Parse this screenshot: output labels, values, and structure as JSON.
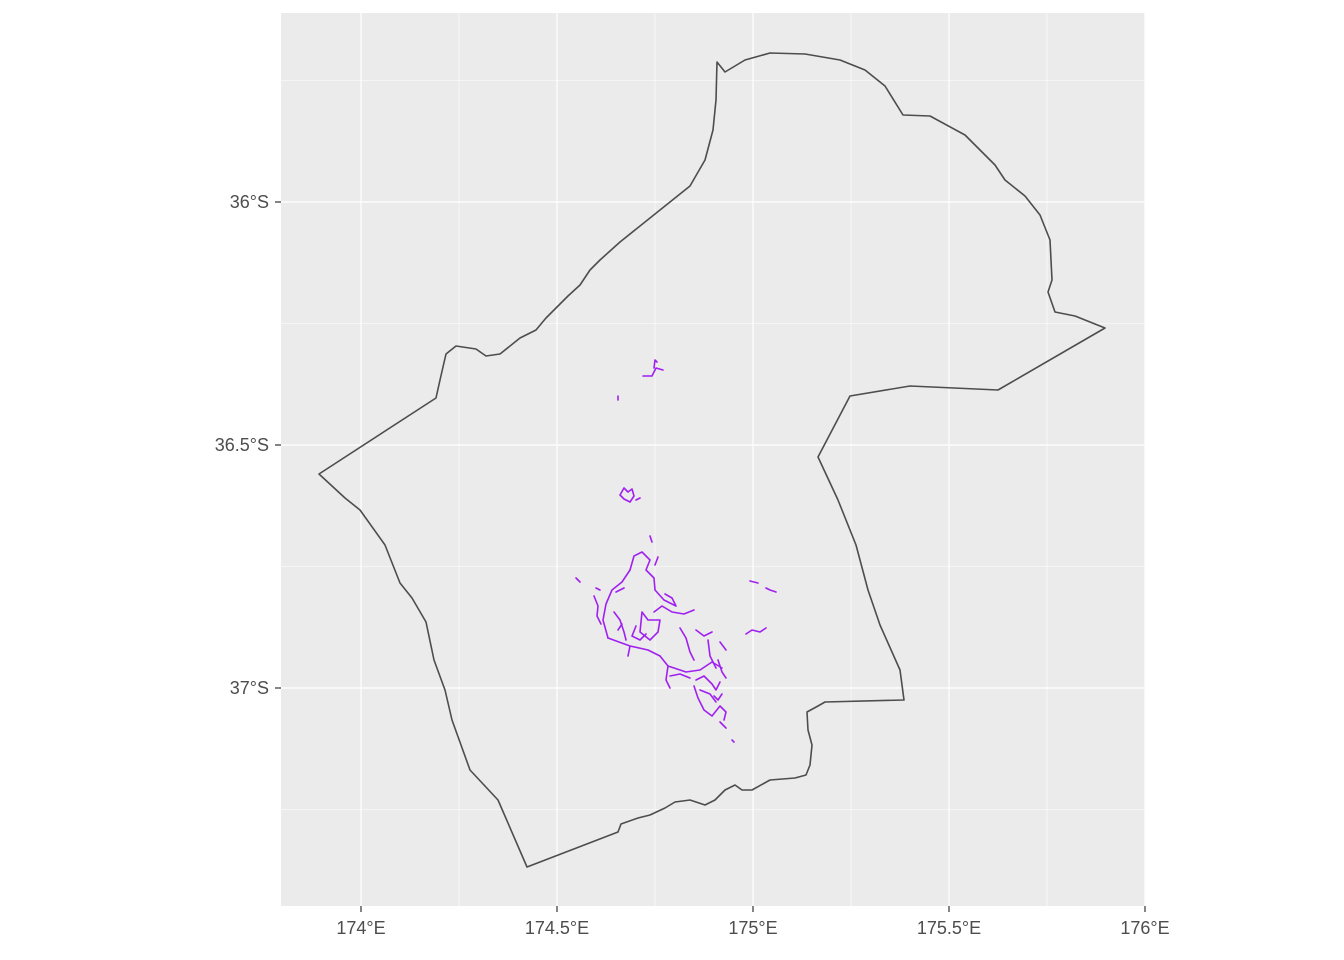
{
  "map": {
    "type": "map",
    "panel_color": "#ebebeb",
    "grid_color": "#ffffff",
    "boundary_color": "#4d4d4d",
    "feature_color": "#a020f0",
    "grid": true,
    "x_axis": {
      "ticks": [
        {
          "value": 174.0,
          "label": "174°E"
        },
        {
          "value": 174.5,
          "label": "174.5°E"
        },
        {
          "value": 175.0,
          "label": "175°E"
        },
        {
          "value": 175.5,
          "label": "175.5°E"
        },
        {
          "value": 176.0,
          "label": "176°E"
        }
      ]
    },
    "y_axis": {
      "ticks": [
        {
          "value": -36.0,
          "label": "36°S"
        },
        {
          "value": -36.5,
          "label": "36.5°S"
        },
        {
          "value": -37.0,
          "label": "37°S"
        }
      ]
    },
    "xlim": [
      173.8,
      176.0
    ],
    "ylim": [
      -37.45,
      -35.6
    ]
  }
}
